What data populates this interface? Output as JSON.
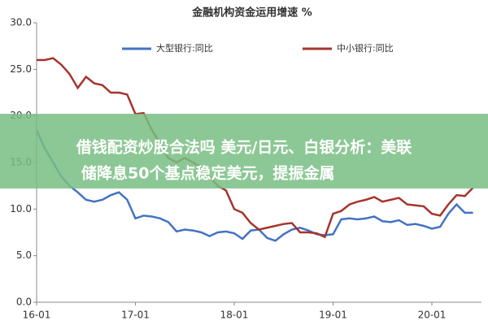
{
  "chart_data": {
    "type": "line",
    "title": "金融机构资金运用增速 %",
    "categories": [
      "16-01",
      null,
      null,
      null,
      null,
      null,
      null,
      null,
      null,
      null,
      null,
      null,
      "17-01",
      null,
      null,
      null,
      null,
      null,
      null,
      null,
      null,
      null,
      null,
      null,
      "18-01",
      null,
      null,
      null,
      null,
      null,
      null,
      null,
      null,
      null,
      null,
      null,
      "19-01",
      null,
      null,
      null,
      null,
      null,
      null,
      null,
      null,
      null,
      null,
      null,
      "20-01",
      null,
      null,
      null,
      null,
      null
    ],
    "series": [
      {
        "name": "大型银行:同比",
        "color": "#4472c4",
        "values": [
          18.5,
          16.5,
          15.0,
          13.5,
          12.5,
          11.8,
          11.0,
          10.8,
          11.0,
          11.5,
          11.8,
          11.0,
          9.0,
          9.3,
          9.2,
          9.0,
          8.6,
          7.6,
          7.8,
          7.7,
          7.5,
          7.1,
          7.5,
          7.6,
          7.4,
          6.8,
          7.7,
          7.8,
          6.9,
          6.6,
          7.3,
          7.8,
          8.0,
          7.7,
          7.3,
          7.2,
          7.3,
          8.9,
          9.0,
          8.9,
          9.0,
          9.2,
          8.7,
          8.6,
          8.8,
          8.3,
          8.4,
          8.2,
          7.9,
          8.1,
          9.5,
          10.5,
          9.6,
          9.6
        ]
      },
      {
        "name": "中小银行:同比",
        "color": "#a5342c",
        "values": [
          26.0,
          26.0,
          26.2,
          25.5,
          24.5,
          23.0,
          24.2,
          23.5,
          23.3,
          22.5,
          22.5,
          22.3,
          20.2,
          20.3,
          18.5,
          17.0,
          15.5,
          15.0,
          15.5,
          15.0,
          14.5,
          13.5,
          12.5,
          12.0,
          10.0,
          9.6,
          8.5,
          7.8,
          8.0,
          8.2,
          8.4,
          8.5,
          7.5,
          7.5,
          7.4,
          7.0,
          9.5,
          9.8,
          10.5,
          10.8,
          11.0,
          11.3,
          10.8,
          11.0,
          11.2,
          10.5,
          10.4,
          10.3,
          9.5,
          9.3,
          10.5,
          11.5,
          11.4,
          12.3
        ]
      }
    ],
    "ylim": [
      0,
      30
    ],
    "yticks": [
      {
        "value": 0,
        "label": "0.0"
      },
      {
        "value": 5,
        "label": "5.0"
      },
      {
        "value": 10,
        "label": "10.0"
      },
      {
        "value": 15,
        "label": "15.0"
      },
      {
        "value": 20,
        "label": "20.0"
      },
      {
        "value": 25,
        "label": "25.0"
      },
      {
        "value": 30,
        "label": "30.0"
      }
    ],
    "grid": false
  },
  "banner": [
    "借钱配资炒股合法吗 美元/日元、白银分析：美联",
    "储降息50个基点稳定美元，提振金属"
  ]
}
